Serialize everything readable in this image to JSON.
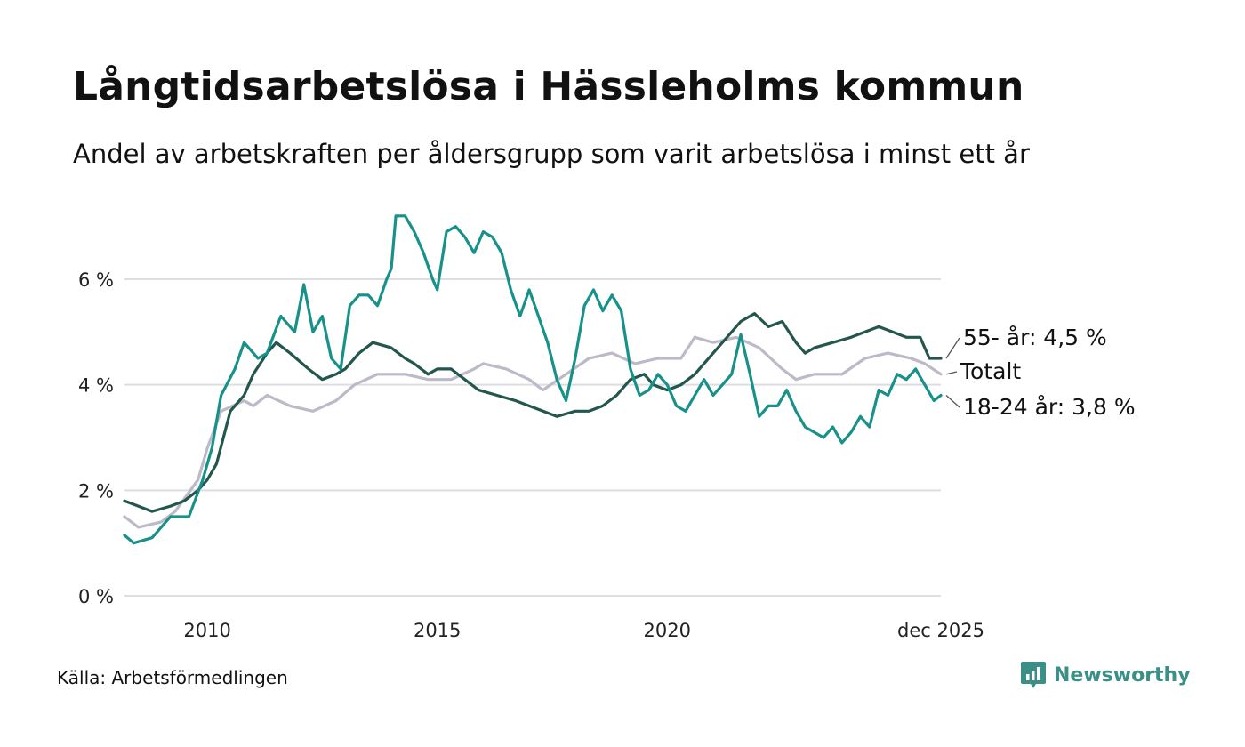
{
  "title": "Långtidsarbetslösa i Hässleholms kommun",
  "subtitle": "Andel av arbetskraften per åldersgrupp som varit arbetslösa i minst ett år",
  "source": "Källa: Arbetsförmedlingen",
  "brand": {
    "name": "Newsworthy",
    "color": "#3a8f86"
  },
  "chart_data": {
    "type": "line",
    "title": "Långtidsarbetslösa i Hässleholms kommun",
    "xlabel": "",
    "ylabel": "",
    "x_range": [
      2008.2,
      2025.95
    ],
    "ylim": [
      0,
      7.5
    ],
    "yticks": [
      {
        "value": 0,
        "label": "0 %"
      },
      {
        "value": 2,
        "label": "2 %"
      },
      {
        "value": 4,
        "label": "4 %"
      },
      {
        "value": 6,
        "label": "6 %"
      }
    ],
    "xticks": [
      {
        "value": 2010,
        "label": "2010"
      },
      {
        "value": 2015,
        "label": "2015"
      },
      {
        "value": 2020,
        "label": "2020"
      },
      {
        "value": 2025.95,
        "label": "dec 2025"
      }
    ],
    "grid": true,
    "series": [
      {
        "name": "Totalt",
        "color": "#bdb9c8",
        "end_label": "Totalt",
        "points": [
          [
            2008.2,
            1.5
          ],
          [
            2008.5,
            1.3
          ],
          [
            2009.0,
            1.4
          ],
          [
            2009.3,
            1.6
          ],
          [
            2009.8,
            2.2
          ],
          [
            2010.0,
            2.8
          ],
          [
            2010.3,
            3.5
          ],
          [
            2010.8,
            3.7
          ],
          [
            2011.0,
            3.6
          ],
          [
            2011.3,
            3.8
          ],
          [
            2011.8,
            3.6
          ],
          [
            2012.3,
            3.5
          ],
          [
            2012.8,
            3.7
          ],
          [
            2013.2,
            4.0
          ],
          [
            2013.7,
            4.2
          ],
          [
            2014.3,
            4.2
          ],
          [
            2014.8,
            4.1
          ],
          [
            2015.3,
            4.1
          ],
          [
            2015.8,
            4.3
          ],
          [
            2016.0,
            4.4
          ],
          [
            2016.5,
            4.3
          ],
          [
            2017.0,
            4.1
          ],
          [
            2017.3,
            3.9
          ],
          [
            2017.8,
            4.2
          ],
          [
            2018.3,
            4.5
          ],
          [
            2018.8,
            4.6
          ],
          [
            2019.3,
            4.4
          ],
          [
            2019.8,
            4.5
          ],
          [
            2020.3,
            4.5
          ],
          [
            2020.6,
            4.9
          ],
          [
            2021.0,
            4.8
          ],
          [
            2021.5,
            4.9
          ],
          [
            2022.0,
            4.7
          ],
          [
            2022.5,
            4.3
          ],
          [
            2022.8,
            4.1
          ],
          [
            2023.2,
            4.2
          ],
          [
            2023.8,
            4.2
          ],
          [
            2024.3,
            4.5
          ],
          [
            2024.8,
            4.6
          ],
          [
            2025.3,
            4.5
          ],
          [
            2025.6,
            4.4
          ],
          [
            2025.95,
            4.2
          ]
        ]
      },
      {
        "name": "55- år",
        "color": "#23564c",
        "end_label": "55- år: 4,5 %",
        "points": [
          [
            2008.2,
            1.8
          ],
          [
            2008.5,
            1.7
          ],
          [
            2008.8,
            1.6
          ],
          [
            2009.2,
            1.7
          ],
          [
            2009.5,
            1.8
          ],
          [
            2009.8,
            2.0
          ],
          [
            2010.0,
            2.2
          ],
          [
            2010.2,
            2.5
          ],
          [
            2010.5,
            3.5
          ],
          [
            2010.8,
            3.8
          ],
          [
            2011.0,
            4.2
          ],
          [
            2011.3,
            4.6
          ],
          [
            2011.5,
            4.8
          ],
          [
            2011.8,
            4.6
          ],
          [
            2012.2,
            4.3
          ],
          [
            2012.5,
            4.1
          ],
          [
            2012.8,
            4.2
          ],
          [
            2013.0,
            4.3
          ],
          [
            2013.3,
            4.6
          ],
          [
            2013.6,
            4.8
          ],
          [
            2014.0,
            4.7
          ],
          [
            2014.3,
            4.5
          ],
          [
            2014.5,
            4.4
          ],
          [
            2014.8,
            4.2
          ],
          [
            2015.0,
            4.3
          ],
          [
            2015.3,
            4.3
          ],
          [
            2015.6,
            4.1
          ],
          [
            2015.9,
            3.9
          ],
          [
            2016.3,
            3.8
          ],
          [
            2016.7,
            3.7
          ],
          [
            2017.0,
            3.6
          ],
          [
            2017.3,
            3.5
          ],
          [
            2017.6,
            3.4
          ],
          [
            2018.0,
            3.5
          ],
          [
            2018.3,
            3.5
          ],
          [
            2018.6,
            3.6
          ],
          [
            2018.9,
            3.8
          ],
          [
            2019.2,
            4.1
          ],
          [
            2019.5,
            4.2
          ],
          [
            2019.7,
            4.0
          ],
          [
            2020.0,
            3.9
          ],
          [
            2020.3,
            4.0
          ],
          [
            2020.6,
            4.2
          ],
          [
            2021.0,
            4.6
          ],
          [
            2021.3,
            4.9
          ],
          [
            2021.6,
            5.2
          ],
          [
            2021.9,
            5.35
          ],
          [
            2022.2,
            5.1
          ],
          [
            2022.5,
            5.2
          ],
          [
            2022.8,
            4.8
          ],
          [
            2023.0,
            4.6
          ],
          [
            2023.2,
            4.7
          ],
          [
            2023.6,
            4.8
          ],
          [
            2024.0,
            4.9
          ],
          [
            2024.3,
            5.0
          ],
          [
            2024.6,
            5.1
          ],
          [
            2024.9,
            5.0
          ],
          [
            2025.2,
            4.9
          ],
          [
            2025.5,
            4.9
          ],
          [
            2025.7,
            4.5
          ],
          [
            2025.95,
            4.5
          ]
        ]
      },
      {
        "name": "18-24 år",
        "color": "#17918a",
        "end_label": "18-24 år: 3,8 %",
        "points": [
          [
            2008.2,
            1.15
          ],
          [
            2008.4,
            1.0
          ],
          [
            2008.8,
            1.1
          ],
          [
            2009.2,
            1.5
          ],
          [
            2009.6,
            1.5
          ],
          [
            2009.9,
            2.2
          ],
          [
            2010.1,
            2.8
          ],
          [
            2010.3,
            3.8
          ],
          [
            2010.6,
            4.3
          ],
          [
            2010.8,
            4.8
          ],
          [
            2011.1,
            4.5
          ],
          [
            2011.3,
            4.6
          ],
          [
            2011.6,
            5.3
          ],
          [
            2011.9,
            5.0
          ],
          [
            2012.1,
            5.9
          ],
          [
            2012.3,
            5.0
          ],
          [
            2012.5,
            5.3
          ],
          [
            2012.7,
            4.5
          ],
          [
            2012.9,
            4.3
          ],
          [
            2013.1,
            5.5
          ],
          [
            2013.3,
            5.7
          ],
          [
            2013.5,
            5.7
          ],
          [
            2013.7,
            5.5
          ],
          [
            2013.9,
            6.0
          ],
          [
            2014.0,
            6.2
          ],
          [
            2014.1,
            7.2
          ],
          [
            2014.3,
            7.2
          ],
          [
            2014.5,
            6.9
          ],
          [
            2014.7,
            6.5
          ],
          [
            2014.9,
            6.0
          ],
          [
            2015.0,
            5.8
          ],
          [
            2015.2,
            6.9
          ],
          [
            2015.4,
            7.0
          ],
          [
            2015.6,
            6.8
          ],
          [
            2015.8,
            6.5
          ],
          [
            2016.0,
            6.9
          ],
          [
            2016.2,
            6.8
          ],
          [
            2016.4,
            6.5
          ],
          [
            2016.6,
            5.8
          ],
          [
            2016.8,
            5.3
          ],
          [
            2017.0,
            5.8
          ],
          [
            2017.2,
            5.3
          ],
          [
            2017.4,
            4.8
          ],
          [
            2017.6,
            4.1
          ],
          [
            2017.8,
            3.7
          ],
          [
            2018.0,
            4.5
          ],
          [
            2018.2,
            5.5
          ],
          [
            2018.4,
            5.8
          ],
          [
            2018.6,
            5.4
          ],
          [
            2018.8,
            5.7
          ],
          [
            2019.0,
            5.4
          ],
          [
            2019.2,
            4.3
          ],
          [
            2019.4,
            3.8
          ],
          [
            2019.6,
            3.9
          ],
          [
            2019.8,
            4.2
          ],
          [
            2020.0,
            4.0
          ],
          [
            2020.2,
            3.6
          ],
          [
            2020.4,
            3.5
          ],
          [
            2020.6,
            3.8
          ],
          [
            2020.8,
            4.1
          ],
          [
            2021.0,
            3.8
          ],
          [
            2021.2,
            4.0
          ],
          [
            2021.4,
            4.2
          ],
          [
            2021.6,
            4.95
          ],
          [
            2021.8,
            4.2
          ],
          [
            2022.0,
            3.4
          ],
          [
            2022.2,
            3.6
          ],
          [
            2022.4,
            3.6
          ],
          [
            2022.6,
            3.9
          ],
          [
            2022.8,
            3.5
          ],
          [
            2023.0,
            3.2
          ],
          [
            2023.2,
            3.1
          ],
          [
            2023.4,
            3.0
          ],
          [
            2023.6,
            3.2
          ],
          [
            2023.8,
            2.9
          ],
          [
            2024.0,
            3.1
          ],
          [
            2024.2,
            3.4
          ],
          [
            2024.4,
            3.2
          ],
          [
            2024.6,
            3.9
          ],
          [
            2024.8,
            3.8
          ],
          [
            2025.0,
            4.2
          ],
          [
            2025.2,
            4.1
          ],
          [
            2025.4,
            4.3
          ],
          [
            2025.6,
            4.0
          ],
          [
            2025.8,
            3.7
          ],
          [
            2025.95,
            3.8
          ]
        ]
      }
    ]
  }
}
